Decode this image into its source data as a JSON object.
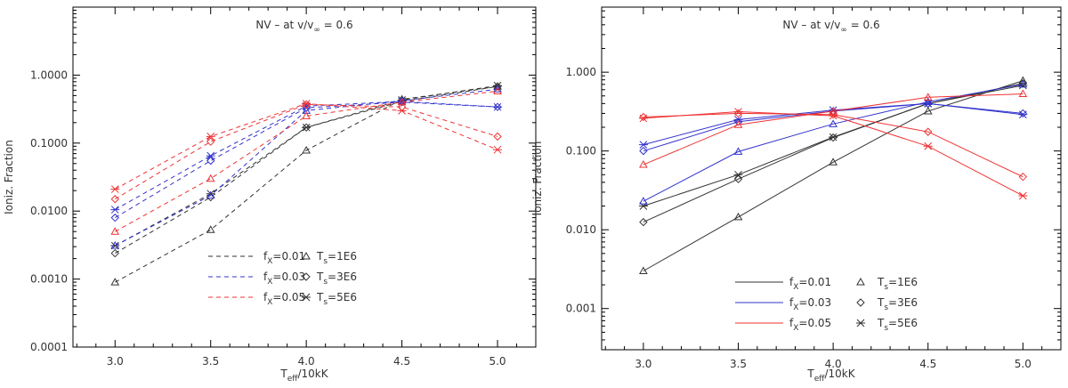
{
  "chart_data": [
    {
      "type": "line",
      "title": "NV – at v/v",
      "title_sub": "∞",
      "title_tail": " = 0.6",
      "xlabel": "T",
      "xlabel_sub": "eff",
      "xlabel_tail": "/10kK",
      "ylabel": "Ioniz. Fraction",
      "yscale": "log",
      "line_style": "dashed",
      "ylim": [
        0.0001,
        10
      ],
      "xlim": [
        2.78,
        5.2
      ],
      "x": [
        3.0,
        3.5,
        4.0,
        4.5,
        5.0
      ],
      "xticks": [
        "3.0",
        "3.5",
        "4.0",
        "4.5",
        "5.0"
      ],
      "yticks": [
        "0.0001",
        "0.0010",
        "0.0100",
        "0.1000",
        "1.0000"
      ],
      "colors": {
        "fx_0.01": "#333333",
        "fx_0.03": "#3333cc",
        "fx_0.05": "#ee3333"
      },
      "series": [
        {
          "name": "fx=0.01, Ts=1E6",
          "fx": "0.01",
          "marker": "triangle",
          "values": [
            0.0009,
            0.0053,
            0.078,
            0.44,
            0.68
          ]
        },
        {
          "name": "fx=0.01, Ts=3E6",
          "fx": "0.01",
          "marker": "diamond",
          "values": [
            0.0024,
            0.016,
            0.17,
            0.41,
            0.68
          ]
        },
        {
          "name": "fx=0.01, Ts=5E6",
          "fx": "0.01",
          "marker": "asterisk",
          "values": [
            0.0031,
            0.018,
            0.17,
            0.43,
            0.7
          ]
        },
        {
          "name": "fx=0.03, Ts=1E6",
          "fx": "0.03",
          "marker": "triangle",
          "values": [
            0.0031,
            0.017,
            0.3,
            0.42,
            0.62
          ]
        },
        {
          "name": "fx=0.03, Ts=3E6",
          "fx": "0.03",
          "marker": "diamond",
          "values": [
            0.008,
            0.055,
            0.33,
            0.4,
            0.34
          ]
        },
        {
          "name": "fx=0.03, Ts=5E6",
          "fx": "0.03",
          "marker": "asterisk",
          "values": [
            0.0105,
            0.065,
            0.35,
            0.41,
            0.34
          ]
        },
        {
          "name": "fx=0.05, Ts=1E6",
          "fx": "0.05",
          "marker": "triangle",
          "values": [
            0.005,
            0.03,
            0.25,
            0.4,
            0.58
          ]
        },
        {
          "name": "fx=0.05, Ts=3E6",
          "fx": "0.05",
          "marker": "diamond",
          "values": [
            0.015,
            0.105,
            0.37,
            0.34,
            0.125
          ]
        },
        {
          "name": "fx=0.05, Ts=5E6",
          "fx": "0.05",
          "marker": "asterisk",
          "values": [
            0.021,
            0.125,
            0.38,
            0.3,
            0.08
          ]
        }
      ],
      "legend": {
        "placement": "bottom-center",
        "lines": [
          {
            "label": "f",
            "sub": "X",
            "value": "=0.01",
            "color": "fx_0.01"
          },
          {
            "label": "f",
            "sub": "X",
            "value": "=0.03",
            "color": "fx_0.03"
          },
          {
            "label": "f",
            "sub": "X",
            "value": "=0.05",
            "color": "fx_0.05"
          }
        ],
        "markers": [
          {
            "label": "T",
            "sub": "s",
            "value": "=1E6",
            "marker": "triangle"
          },
          {
            "label": "T",
            "sub": "s",
            "value": "=3E6",
            "marker": "diamond"
          },
          {
            "label": "T",
            "sub": "s",
            "value": "=5E6",
            "marker": "asterisk"
          }
        ]
      }
    },
    {
      "type": "line",
      "title": "NV – at v/v",
      "title_sub": "∞",
      "title_tail": " = 0.6",
      "xlabel": "T",
      "xlabel_sub": "eff",
      "xlabel_tail": "/10kK",
      "ylabel": "Ioniz. Fraction",
      "yscale": "log",
      "line_style": "solid",
      "ylim": [
        0.0003,
        6.7
      ],
      "xlim": [
        2.78,
        5.2
      ],
      "x": [
        3.0,
        3.5,
        4.0,
        4.5,
        5.0
      ],
      "xticks": [
        "3.0",
        "3.5",
        "4.0",
        "4.5",
        "5.0"
      ],
      "yticks": [
        "0.001",
        "0.010",
        "0.100",
        "1.000"
      ],
      "colors": {
        "fx_0.01": "#333333",
        "fx_0.03": "#3333cc",
        "fx_0.05": "#ee3333"
      },
      "series": [
        {
          "name": "fx=0.01, Ts=1E6",
          "fx": "0.01",
          "marker": "triangle",
          "values": [
            0.003,
            0.0145,
            0.072,
            0.32,
            0.78
          ]
        },
        {
          "name": "fx=0.01, Ts=3E6",
          "fx": "0.01",
          "marker": "diamond",
          "values": [
            0.0125,
            0.044,
            0.148,
            0.4,
            0.72
          ]
        },
        {
          "name": "fx=0.01, Ts=5E6",
          "fx": "0.01",
          "marker": "asterisk",
          "values": [
            0.02,
            0.05,
            0.15,
            0.4,
            0.68
          ]
        },
        {
          "name": "fx=0.03, Ts=1E6",
          "fx": "0.03",
          "marker": "triangle",
          "values": [
            0.023,
            0.098,
            0.22,
            0.42,
            0.7
          ]
        },
        {
          "name": "fx=0.03, Ts=3E6",
          "fx": "0.03",
          "marker": "diamond",
          "values": [
            0.1,
            0.235,
            0.32,
            0.4,
            0.3
          ]
        },
        {
          "name": "fx=0.03, Ts=5E6",
          "fx": "0.03",
          "marker": "asterisk",
          "values": [
            0.12,
            0.25,
            0.33,
            0.4,
            0.29
          ]
        },
        {
          "name": "fx=0.05, Ts=1E6",
          "fx": "0.05",
          "marker": "triangle",
          "values": [
            0.067,
            0.215,
            0.32,
            0.48,
            0.53
          ]
        },
        {
          "name": "fx=0.05, Ts=3E6",
          "fx": "0.05",
          "marker": "diamond",
          "values": [
            0.27,
            0.3,
            0.29,
            0.175,
            0.047
          ]
        },
        {
          "name": "fx=0.05, Ts=5E6",
          "fx": "0.05",
          "marker": "asterisk",
          "values": [
            0.26,
            0.315,
            0.28,
            0.115,
            0.027
          ]
        }
      ],
      "legend": {
        "placement": "bottom-center",
        "lines": [
          {
            "label": "f",
            "sub": "X",
            "value": "=0.01",
            "color": "fx_0.01"
          },
          {
            "label": "f",
            "sub": "X",
            "value": "=0.03",
            "color": "fx_0.03"
          },
          {
            "label": "f",
            "sub": "X",
            "value": "=0.05",
            "color": "fx_0.05"
          }
        ],
        "markers": [
          {
            "label": "T",
            "sub": "s",
            "value": "=1E6",
            "marker": "triangle"
          },
          {
            "label": "T",
            "sub": "s",
            "value": "=3E6",
            "marker": "diamond"
          },
          {
            "label": "T",
            "sub": "s",
            "value": "=5E6",
            "marker": "asterisk"
          }
        ]
      }
    }
  ]
}
